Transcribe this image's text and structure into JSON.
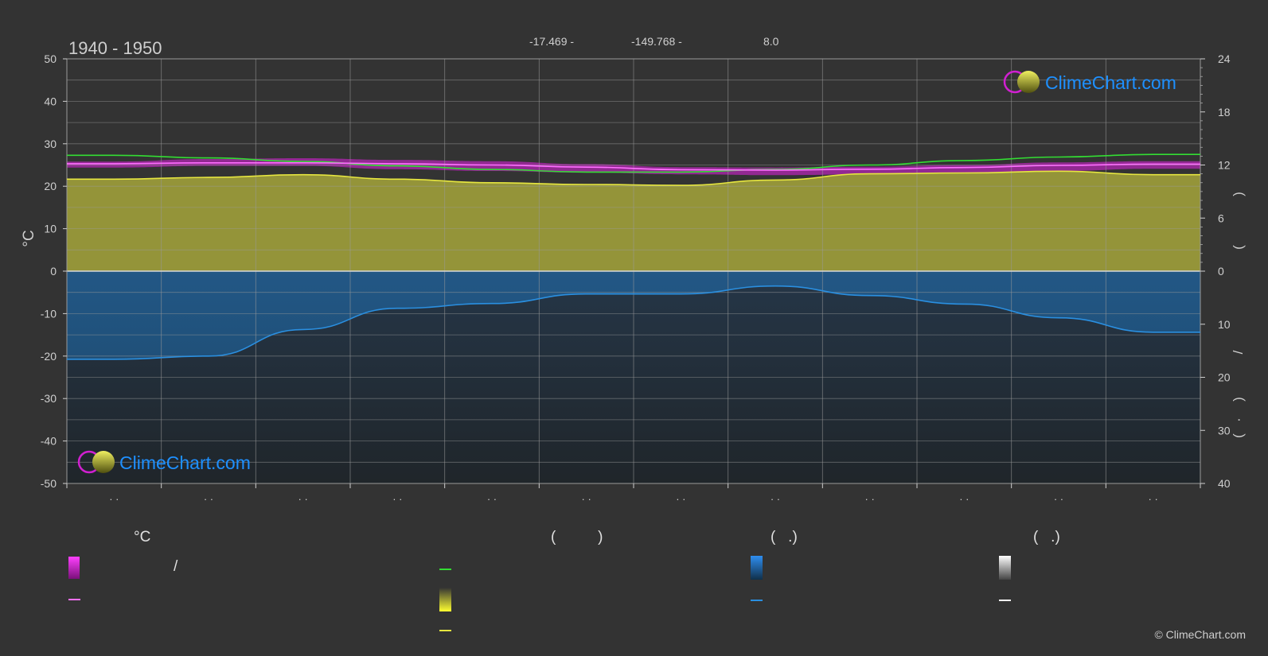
{
  "header": {
    "period": "1940 - 1950",
    "latitude": "-17.469 -",
    "longitude": "-149.768 -",
    "elevation": "8.0"
  },
  "left_axis": {
    "unit": "°C"
  },
  "right_axis": {
    "upper_glyphs": [
      ")",
      "("
    ],
    "lower_glyphs": [
      "/",
      ")",
      "(",
      "·"
    ]
  },
  "month_ticks": [
    "· ·",
    "· ·",
    "· ·",
    "· ·",
    "· ·",
    "· ·",
    "· ·",
    "· ·",
    "· ·",
    "· ·",
    "· ·",
    "· ·"
  ],
  "brand": {
    "name": "ClimeChart.com",
    "copyright": "© ClimeChart.com"
  },
  "legend": {
    "headers": {
      "temperature": "°C",
      "sunshine": "(          )",
      "rain": "(   .)",
      "snow": "(   .)"
    },
    "slash_label": "/"
  },
  "colors": {
    "background": "#333333",
    "temperature_band": "#e020e0",
    "temperature_mean": "#ff70ff",
    "daylight": "#33dd33",
    "sunshine_fill": "#9a9a3a",
    "sunshine_line": "#e6e640",
    "rain_fill": "#1f5a88",
    "rain_line": "#2a8fe0",
    "snow_line": "#ffffff",
    "brand_text": "#1e90ff"
  },
  "chart_data": {
    "type": "area",
    "xlabel": "",
    "ylabel": "°C",
    "ylim": [
      -50,
      50
    ],
    "y2_upper_ticks": [
      0,
      6,
      12,
      18,
      24
    ],
    "y2_lower_ticks": [
      0,
      10,
      20,
      30,
      40
    ],
    "y_ticks": [
      50,
      40,
      30,
      20,
      10,
      0,
      -10,
      -20,
      -30,
      -40,
      -50
    ],
    "months": 12,
    "series": [
      {
        "key": "temp_max",
        "values": [
          25.8,
          26.4,
          26.6,
          26.2,
          25.9,
          25.2,
          24.5,
          24.4,
          24.6,
          25.0,
          25.6,
          25.9
        ]
      },
      {
        "key": "temp_min",
        "values": [
          24.4,
          24.8,
          24.8,
          24.0,
          23.6,
          23.2,
          22.8,
          22.6,
          22.8,
          23.1,
          23.6,
          24.1
        ]
      },
      {
        "key": "temp_mean",
        "values": [
          25.3,
          25.5,
          25.5,
          25.3,
          25.0,
          24.5,
          23.9,
          23.8,
          24.0,
          24.4,
          24.9,
          25.2
        ]
      },
      {
        "key": "daylight_hours",
        "values": [
          13.1,
          12.8,
          12.4,
          11.9,
          11.5,
          11.2,
          11.2,
          11.5,
          12.0,
          12.5,
          12.9,
          13.2
        ]
      },
      {
        "key": "sunshine_hours",
        "values": [
          10.4,
          10.6,
          10.9,
          10.4,
          10.0,
          9.8,
          9.7,
          10.3,
          11.0,
          11.1,
          11.3,
          10.9
        ]
      },
      {
        "key": "precipitation_mm",
        "values": [
          16.6,
          16.0,
          11.0,
          7.0,
          6.1,
          4.3,
          4.3,
          2.8,
          4.6,
          6.2,
          8.8,
          11.5
        ]
      }
    ]
  }
}
